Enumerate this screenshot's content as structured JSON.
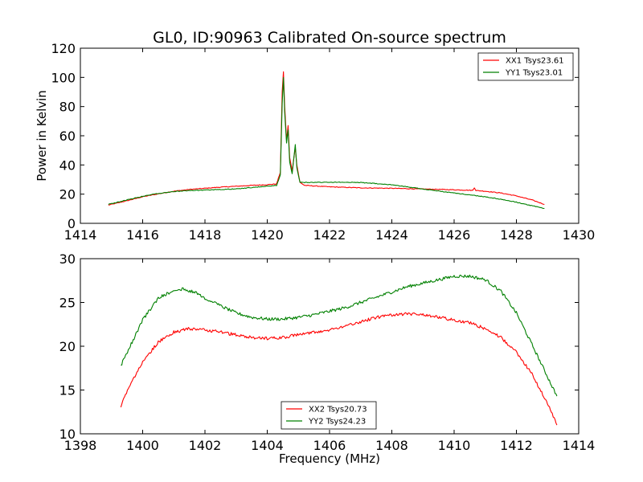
{
  "chart_data": [
    {
      "type": "line",
      "title": "GL0, ID:90963 Calibrated On-source spectrum",
      "xlabel": "",
      "ylabel": "Power in Kelvin",
      "xlim": [
        1414,
        1430
      ],
      "ylim": [
        0,
        120
      ],
      "xticks": [
        "1414",
        "1416",
        "1418",
        "1420",
        "1422",
        "1424",
        "1426",
        "1428",
        "1430"
      ],
      "yticks": [
        "0",
        "20",
        "40",
        "60",
        "80",
        "100",
        "120"
      ],
      "legend_position": "top-right",
      "series": [
        {
          "name": "XX1 Tsys23.61",
          "color": "#ff0000",
          "points": [
            [
              1414.9,
              12.5
            ],
            [
              1415.5,
              15.5
            ],
            [
              1416,
              18.2
            ],
            [
              1416.5,
              20.2
            ],
            [
              1417,
              22
            ],
            [
              1417.5,
              23.2
            ],
            [
              1418,
              24
            ],
            [
              1418.5,
              24.8
            ],
            [
              1419,
              25.4
            ],
            [
              1419.5,
              26
            ],
            [
              1420,
              26.5
            ],
            [
              1420.3,
              27
            ],
            [
              1420.42,
              35
            ],
            [
              1420.48,
              90
            ],
            [
              1420.52,
              104
            ],
            [
              1420.56,
              80
            ],
            [
              1420.62,
              57
            ],
            [
              1420.67,
              67
            ],
            [
              1420.72,
              45
            ],
            [
              1420.8,
              36
            ],
            [
              1420.9,
              52
            ],
            [
              1420.95,
              40
            ],
            [
              1421.05,
              28
            ],
            [
              1421.2,
              26
            ],
            [
              1421.6,
              25.5
            ],
            [
              1422,
              25
            ],
            [
              1423,
              24.3
            ],
            [
              1424,
              24
            ],
            [
              1425,
              23.5
            ],
            [
              1426,
              23
            ],
            [
              1426.6,
              22.6
            ],
            [
              1426.65,
              24.5
            ],
            [
              1426.7,
              22.5
            ],
            [
              1427,
              22
            ],
            [
              1427.5,
              20.8
            ],
            [
              1428,
              18.8
            ],
            [
              1428.5,
              16
            ],
            [
              1428.9,
              13
            ]
          ]
        },
        {
          "name": "YY1 Tsys23.01",
          "color": "#008000",
          "points": [
            [
              1414.9,
              13
            ],
            [
              1415.5,
              16
            ],
            [
              1416,
              18.6
            ],
            [
              1416.5,
              20.5
            ],
            [
              1417,
              21.8
            ],
            [
              1417.5,
              22.5
            ],
            [
              1418,
              22.8
            ],
            [
              1418.5,
              23.2
            ],
            [
              1419,
              23.6
            ],
            [
              1419.5,
              24.5
            ],
            [
              1420,
              25.5
            ],
            [
              1420.3,
              26
            ],
            [
              1420.42,
              33
            ],
            [
              1420.48,
              82
            ],
            [
              1420.52,
              100
            ],
            [
              1420.56,
              76
            ],
            [
              1420.62,
              55
            ],
            [
              1420.67,
              64
            ],
            [
              1420.72,
              42
            ],
            [
              1420.8,
              34
            ],
            [
              1420.9,
              54
            ],
            [
              1420.95,
              38
            ],
            [
              1421.05,
              28
            ],
            [
              1421.5,
              28
            ],
            [
              1422,
              28.2
            ],
            [
              1423,
              28
            ],
            [
              1424,
              26.5
            ],
            [
              1425,
              23.5
            ],
            [
              1426,
              20.8
            ],
            [
              1426.5,
              19.5
            ],
            [
              1427,
              18.2
            ],
            [
              1427.5,
              16.5
            ],
            [
              1428,
              14.5
            ],
            [
              1428.5,
              12
            ],
            [
              1428.9,
              10.2
            ]
          ]
        }
      ]
    },
    {
      "type": "line",
      "title": "",
      "xlabel": "Frequency (MHz)",
      "ylabel": "",
      "xlim": [
        1398,
        1414
      ],
      "ylim": [
        10,
        30
      ],
      "xticks": [
        "1398",
        "1400",
        "1402",
        "1404",
        "1406",
        "1408",
        "1410",
        "1412",
        "1414"
      ],
      "yticks": [
        "10",
        "15",
        "20",
        "25",
        "30"
      ],
      "legend_position": "lower-center",
      "series": [
        {
          "name": "XX2 Tsys20.73",
          "color": "#ff0000",
          "points": [
            [
              1399.3,
              13.2
            ],
            [
              1399.6,
              15.6
            ],
            [
              1400,
              18.2
            ],
            [
              1400.5,
              20.5
            ],
            [
              1401,
              21.6
            ],
            [
              1401.5,
              22
            ],
            [
              1402,
              21.9
            ],
            [
              1402.5,
              21.6
            ],
            [
              1403,
              21.3
            ],
            [
              1403.5,
              21
            ],
            [
              1404,
              20.9
            ],
            [
              1404.5,
              21
            ],
            [
              1405,
              21.3
            ],
            [
              1405.5,
              21.6
            ],
            [
              1406,
              21.9
            ],
            [
              1406.5,
              22.3
            ],
            [
              1407,
              22.8
            ],
            [
              1407.5,
              23.3
            ],
            [
              1408,
              23.6
            ],
            [
              1408.5,
              23.7
            ],
            [
              1409,
              23.6
            ],
            [
              1409.5,
              23.3
            ],
            [
              1410,
              23
            ],
            [
              1410.5,
              22.7
            ],
            [
              1411,
              22
            ],
            [
              1411.5,
              21
            ],
            [
              1412,
              19.3
            ],
            [
              1412.5,
              16.8
            ],
            [
              1413,
              13.5
            ],
            [
              1413.3,
              11
            ]
          ]
        },
        {
          "name": "YY2 Tsys24.23",
          "color": "#008000",
          "points": [
            [
              1399.3,
              17.8
            ],
            [
              1399.6,
              20
            ],
            [
              1400,
              23
            ],
            [
              1400.5,
              25.5
            ],
            [
              1401,
              26.4
            ],
            [
              1401.3,
              26.5
            ],
            [
              1401.7,
              26.2
            ],
            [
              1402,
              25.5
            ],
            [
              1402.5,
              24.6
            ],
            [
              1403,
              23.8
            ],
            [
              1403.5,
              23.3
            ],
            [
              1404,
              23.1
            ],
            [
              1404.5,
              23.1
            ],
            [
              1405,
              23.3
            ],
            [
              1405.5,
              23.6
            ],
            [
              1406,
              24
            ],
            [
              1406.5,
              24.4
            ],
            [
              1407,
              25
            ],
            [
              1407.5,
              25.6
            ],
            [
              1408,
              26.2
            ],
            [
              1408.5,
              26.8
            ],
            [
              1409,
              27.2
            ],
            [
              1409.5,
              27.6
            ],
            [
              1410,
              28
            ],
            [
              1410.5,
              28
            ],
            [
              1411,
              27.6
            ],
            [
              1411.5,
              26.3
            ],
            [
              1412,
              23.8
            ],
            [
              1412.5,
              20.2
            ],
            [
              1413,
              16.5
            ],
            [
              1413.3,
              14.3
            ]
          ]
        }
      ]
    }
  ]
}
